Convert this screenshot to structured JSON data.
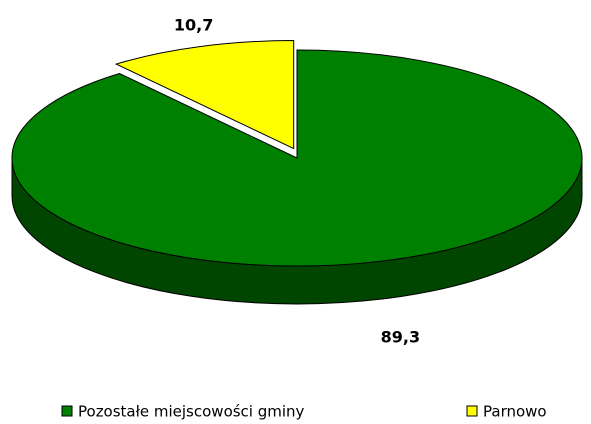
{
  "chart_data": {
    "type": "pie",
    "categories": [
      "Pozostałe miejscowości gminy",
      "Parnowo"
    ],
    "values": [
      89.3,
      10.7
    ],
    "value_labels": [
      "89,3",
      "10,7"
    ],
    "colors": [
      "#008000",
      "#ffff00"
    ],
    "legend": "bottom"
  }
}
